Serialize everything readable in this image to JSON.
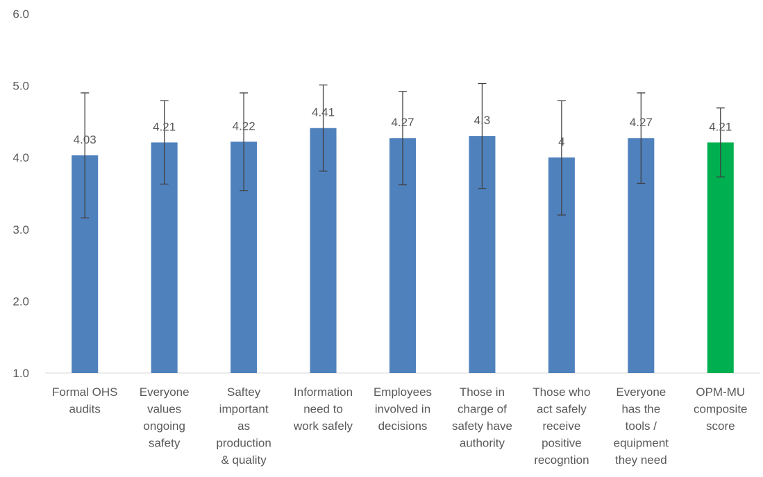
{
  "chart_data": {
    "type": "bar",
    "title": "",
    "xlabel": "",
    "ylabel": "",
    "ylim": [
      1.0,
      6.0
    ],
    "yticks": [
      "1.0",
      "2.0",
      "3.0",
      "4.0",
      "5.0",
      "6.0"
    ],
    "grid": false,
    "categories": [
      [
        "Formal OHS",
        "audits"
      ],
      [
        "Everyone",
        "values",
        "ongoing",
        "safety"
      ],
      [
        "Saftey",
        "important",
        "as",
        "production",
        "& quality"
      ],
      [
        "Information",
        "need to",
        "work safely"
      ],
      [
        "Employees",
        "involved in",
        "decisions"
      ],
      [
        "Those in",
        "charge of",
        "safety have",
        "authority"
      ],
      [
        "Those who",
        "act safely",
        "receive",
        "positive",
        "recogntion"
      ],
      [
        "Everyone",
        "has the",
        "tools /",
        "equipment",
        "they need"
      ],
      [
        "OPM-MU",
        "composite",
        "score"
      ]
    ],
    "values": [
      4.03,
      4.21,
      4.22,
      4.41,
      4.27,
      4.3,
      4.0,
      4.27,
      4.21
    ],
    "data_labels": [
      "4.03",
      "4.21",
      "4.22",
      "4.41",
      "4.27",
      "4.3",
      "4",
      "4.27",
      "4.21"
    ],
    "error_bars": [
      [
        3.16,
        4.9
      ],
      [
        3.63,
        4.79
      ],
      [
        3.54,
        4.9
      ],
      [
        3.81,
        5.01
      ],
      [
        3.62,
        4.92
      ],
      [
        3.57,
        5.03
      ],
      [
        3.2,
        4.79
      ],
      [
        3.64,
        4.9
      ],
      [
        3.73,
        4.69
      ]
    ],
    "bar_colors": [
      "#4f81bd",
      "#4f81bd",
      "#4f81bd",
      "#4f81bd",
      "#4f81bd",
      "#4f81bd",
      "#4f81bd",
      "#4f81bd",
      "#00b050"
    ],
    "axis_color": "#d9d9d9",
    "text_color": "#595959",
    "errorbar_color": "#404040"
  }
}
